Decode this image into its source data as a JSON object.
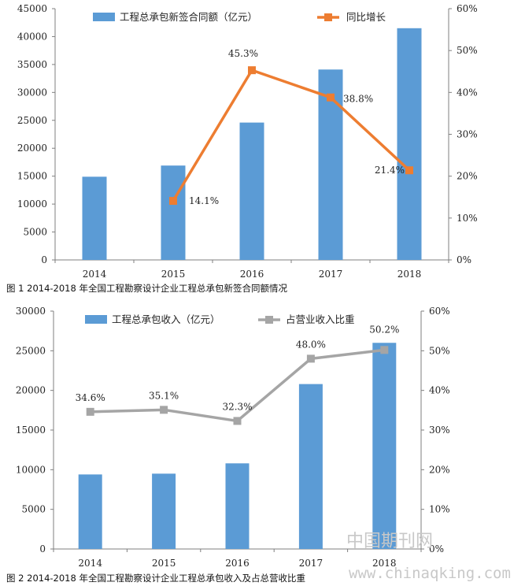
{
  "chart_data": [
    {
      "type": "bar+line",
      "categories": [
        "2014",
        "2015",
        "2016",
        "2017",
        "2018"
      ],
      "series": [
        {
          "name": "工程总承包新签合同额（亿元）",
          "kind": "bar",
          "axis": "left",
          "values": [
            14900,
            16900,
            24600,
            34100,
            41500
          ],
          "color": "#5B9BD5"
        },
        {
          "name": "同比增长",
          "kind": "line",
          "axis": "right",
          "values": [
            null,
            14.1,
            45.3,
            38.8,
            21.4
          ],
          "color": "#ED7D31"
        }
      ],
      "data_labels": [
        null,
        "14.1%",
        "45.3%",
        "38.8%",
        "21.4%"
      ],
      "y_left": {
        "min": 0,
        "max": 45000,
        "ticks": [
          "0",
          "5000",
          "10000",
          "15000",
          "20000",
          "25000",
          "30000",
          "35000",
          "40000",
          "45000"
        ]
      },
      "y_right": {
        "min": 0,
        "max": 60,
        "ticks": [
          "0%",
          "10%",
          "20%",
          "30%",
          "40%",
          "50%",
          "60%"
        ]
      },
      "legend": "top",
      "grid": false,
      "caption": "图 1 2014-2018 年全国工程勘察设计企业工程总承包新签合同额情况"
    },
    {
      "type": "bar+line",
      "categories": [
        "2014",
        "2015",
        "2016",
        "2017",
        "2018"
      ],
      "series": [
        {
          "name": "工程总承包收入（亿元）",
          "kind": "bar",
          "axis": "left",
          "values": [
            9400,
            9500,
            10800,
            20800,
            26000
          ],
          "color": "#5B9BD5"
        },
        {
          "name": "占营业收入比重",
          "kind": "line",
          "axis": "right",
          "values": [
            34.6,
            35.1,
            32.3,
            48.0,
            50.2
          ],
          "color": "#A5A5A5"
        }
      ],
      "data_labels": [
        "34.6%",
        "35.1%",
        "32.3%",
        "48.0%",
        "50.2%"
      ],
      "y_left": {
        "min": 0,
        "max": 30000,
        "ticks": [
          "0",
          "5000",
          "10000",
          "15000",
          "20000",
          "25000",
          "30000"
        ]
      },
      "y_right": {
        "min": 0,
        "max": 60,
        "ticks": [
          "0%",
          "10%",
          "20%",
          "30%",
          "40%",
          "50%",
          "60%"
        ]
      },
      "legend": "top",
      "grid": false,
      "caption": "图 2 2014-2018 年全国工程勘察设计企业工程总承包收入及占总营收比重"
    }
  ],
  "watermark": {
    "line1": "中国期刊网",
    "line2": "www.chinaqking.com"
  }
}
